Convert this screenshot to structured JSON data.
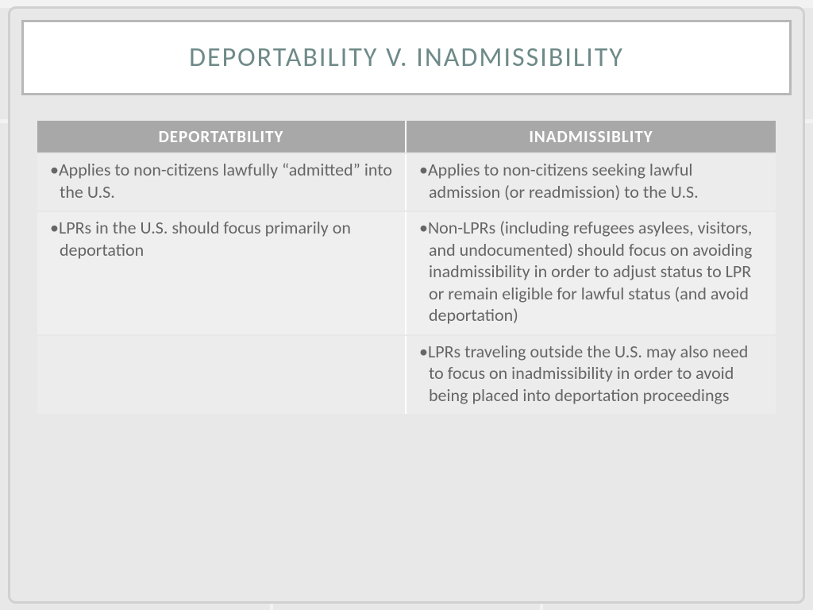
{
  "title": "DEPORTABILITY V. INADMISSIBILITY",
  "columns": {
    "left": "DEPORTATBILITY",
    "right": "INADMISSIBLITY"
  },
  "rows": [
    {
      "left": "•Applies to non-citizens lawfully “admitted” into the U.S.",
      "right": "•Applies to non-citizens seeking lawful admission (or readmission) to the U.S."
    },
    {
      "left": "•LPRs in the U.S. should focus primarily on deportation",
      "right": "•Non-LPRs (including refugees asylees, visitors, and undocumented) should focus on avoiding inadmissibility in order to adjust status to LPR or remain eligible for lawful status (and avoid deportation)"
    },
    {
      "left": "",
      "right": "•LPRs traveling outside the U.S. may also need to focus on inadmissibility in order to avoid being placed into deportation proceedings"
    }
  ],
  "colors": {
    "title_text": "#6e8a88",
    "header_bg": "#a8a8a8",
    "header_text": "#ffffff",
    "cell_bg": "#efefef",
    "cell_text": "#666666",
    "slide_bg": "#e8e8e8",
    "border": "#b8b8b8"
  },
  "typography": {
    "title_size_pt": 26,
    "header_size_pt": 16,
    "body_size_pt": 17
  }
}
